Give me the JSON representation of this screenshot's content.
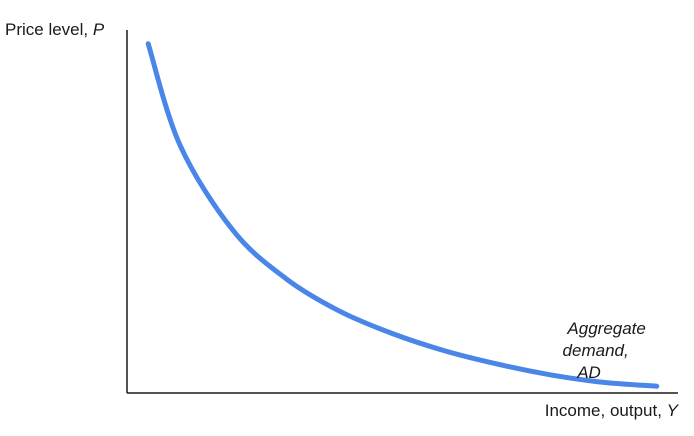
{
  "chart_data": {
    "type": "line",
    "title": "",
    "xlabel": "Income, output, ",
    "xlabel_var": "Y",
    "ylabel": "Price level, ",
    "ylabel_var": "P",
    "grid": false,
    "series": [
      {
        "name": "Aggregate demand, AD",
        "label_lines": [
          "Aggregate",
          "demand,",
          "AD"
        ],
        "color": "#4a86e8",
        "x": [
          4.0,
          10,
          20,
          30,
          40,
          50,
          60,
          70,
          80,
          90,
          100
        ],
        "y": [
          100.0,
          70.4,
          45.5,
          31.4,
          22.0,
          15.4,
          10.3,
          6.4,
          3.3,
          1.1,
          0.0
        ]
      }
    ],
    "xlim": [
      0,
      104
    ],
    "ylim": [
      -2,
      104
    ]
  }
}
